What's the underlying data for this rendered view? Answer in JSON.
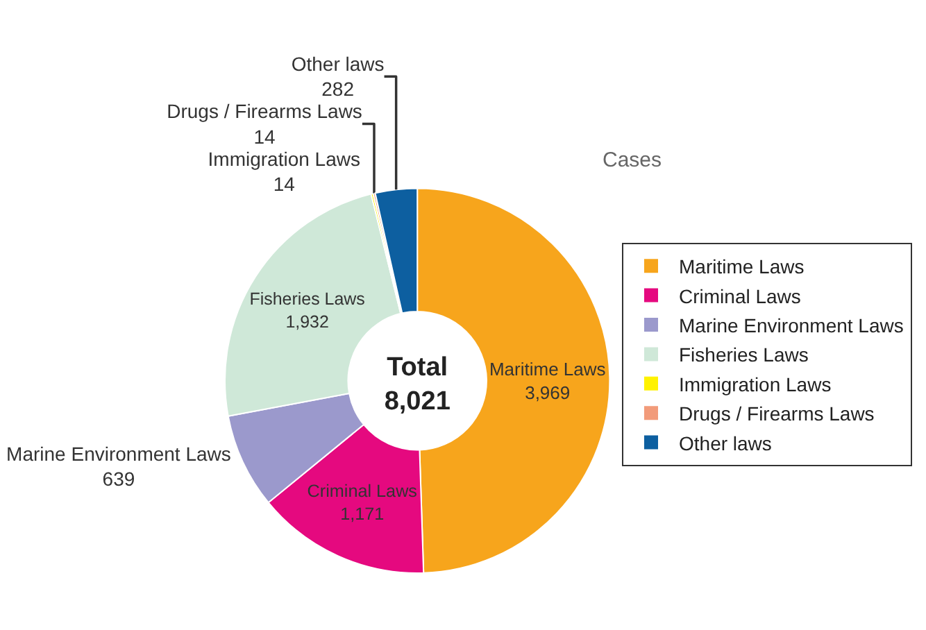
{
  "chart_data": {
    "type": "donut",
    "categories": [
      "Maritime Laws",
      "Criminal Laws",
      "Marine Environment Laws",
      "Fisheries Laws",
      "Immigration Laws",
      "Drugs / Firearms Laws",
      "Other laws"
    ],
    "values": [
      3969,
      1171,
      639,
      1932,
      14,
      14,
      282
    ],
    "colors": [
      "#f7a51c",
      "#e5097f",
      "#9b99cc",
      "#cfe8d8",
      "#fff200",
      "#f29b7a",
      "#0d5fa0"
    ],
    "annotations": [
      "Cases",
      "Total\n8,021"
    ],
    "value_labels": [
      "3,969",
      "1,171",
      "639",
      "1,932",
      "14",
      "14",
      "282"
    ],
    "legend": "right"
  }
}
